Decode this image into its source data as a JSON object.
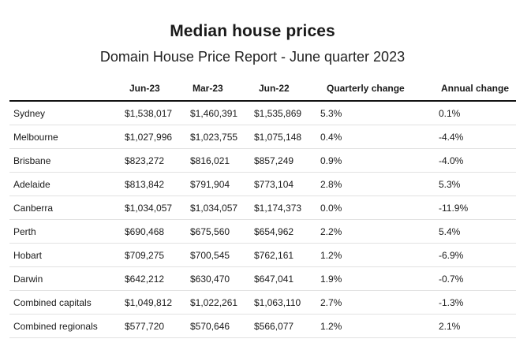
{
  "chart_data": {
    "type": "table",
    "title": "Median house prices",
    "subtitle": "Domain House Price Report - June quarter 2023",
    "columns": [
      "",
      "Jun-23",
      "Mar-23",
      "Jun-22",
      "Quarterly change",
      "Annual change"
    ],
    "rows": [
      [
        "Sydney",
        "$1,538,017",
        "$1,460,391",
        "$1,535,869",
        "5.3%",
        "0.1%"
      ],
      [
        "Melbourne",
        "$1,027,996",
        "$1,023,755",
        "$1,075,148",
        "0.4%",
        "-4.4%"
      ],
      [
        "Brisbane",
        "$823,272",
        "$816,021",
        "$857,249",
        "0.9%",
        "-4.0%"
      ],
      [
        "Adelaide",
        "$813,842",
        "$791,904",
        "$773,104",
        "2.8%",
        "5.3%"
      ],
      [
        "Canberra",
        "$1,034,057",
        "$1,034,057",
        "$1,174,373",
        "0.0%",
        "-11.9%"
      ],
      [
        "Perth",
        "$690,468",
        "$675,560",
        "$654,962",
        "2.2%",
        "5.4%"
      ],
      [
        "Hobart",
        "$709,275",
        "$700,545",
        "$762,161",
        "1.2%",
        "-6.9%"
      ],
      [
        "Darwin",
        "$642,212",
        "$630,470",
        "$647,041",
        "1.9%",
        "-0.7%"
      ],
      [
        "Combined capitals",
        "$1,049,812",
        "$1,022,261",
        "$1,063,110",
        "2.7%",
        "-1.3%"
      ],
      [
        "Combined regionals",
        "$577,720",
        "$570,646",
        "$566,077",
        "1.2%",
        "2.1%"
      ]
    ]
  }
}
